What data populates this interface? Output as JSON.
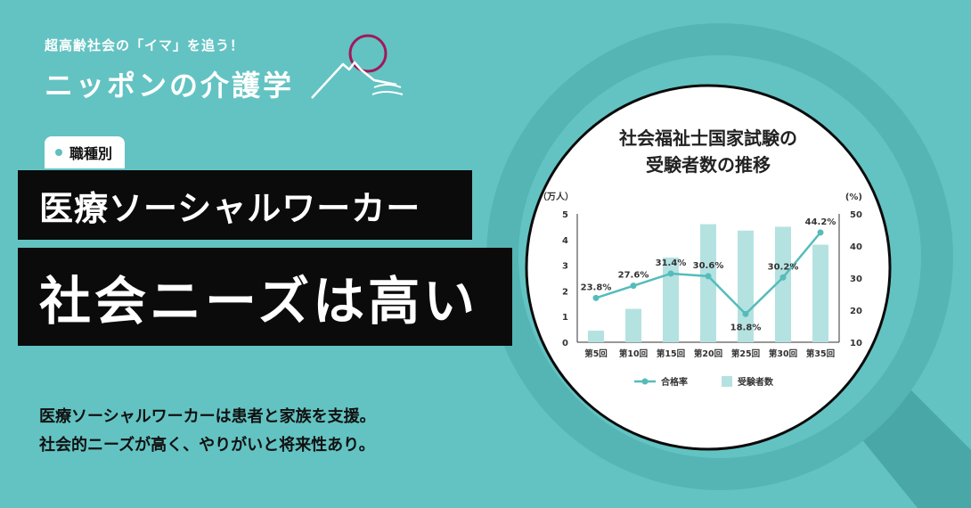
{
  "logo": {
    "tagline": "超高齢社会の「イマ」を追う！",
    "name": "ニッポンの介護学",
    "mark_icon": "mount-fuji-sun-icon"
  },
  "category_badge": "職種別",
  "headline": {
    "line1": "医療ソーシャルワーカー",
    "line2": "社会ニーズは高い"
  },
  "description": {
    "line1": "医療ソーシャルワーカーは患者と家族を支援。",
    "line2": "社会的ニーズが高く、やりがいと将来性あり。"
  },
  "colors": {
    "background": "#63c3c2",
    "lens_ring": "#55b5b4",
    "handle": "#49a8a7",
    "bar": "#b4e2e1",
    "line": "#55bcbb",
    "headline_bg": "#0b0b0b"
  },
  "chart_data": {
    "type": "bar+line",
    "title_line1": "社会福祉士国家試験の",
    "title_line2": "受験者数の推移",
    "categories": [
      "第5回",
      "第10回",
      "第15回",
      "第20回",
      "第25回",
      "第30回",
      "第35回"
    ],
    "left_axis": {
      "unit": "（万人）",
      "ylim": [
        0,
        5
      ],
      "ticks": [
        "0",
        "1",
        "2",
        "3",
        "4",
        "5"
      ]
    },
    "right_axis": {
      "unit": "(%)",
      "ylim": [
        10,
        50
      ],
      "ticks": [
        "10",
        "20",
        "30",
        "40",
        "50"
      ]
    },
    "series": [
      {
        "name": "受験者数",
        "kind": "bar",
        "axis": "left",
        "values": [
          0.45,
          1.3,
          3.3,
          4.6,
          4.35,
          4.5,
          3.8
        ]
      },
      {
        "name": "合格率",
        "kind": "line",
        "axis": "right",
        "values": [
          23.8,
          27.6,
          31.4,
          30.6,
          18.8,
          30.2,
          44.2
        ],
        "labels": [
          "23.8%",
          "27.6%",
          "31.4%",
          "30.6%",
          "18.8%",
          "30.2%",
          "44.2%"
        ]
      }
    ],
    "legend_position": "bottom",
    "grid": false
  }
}
